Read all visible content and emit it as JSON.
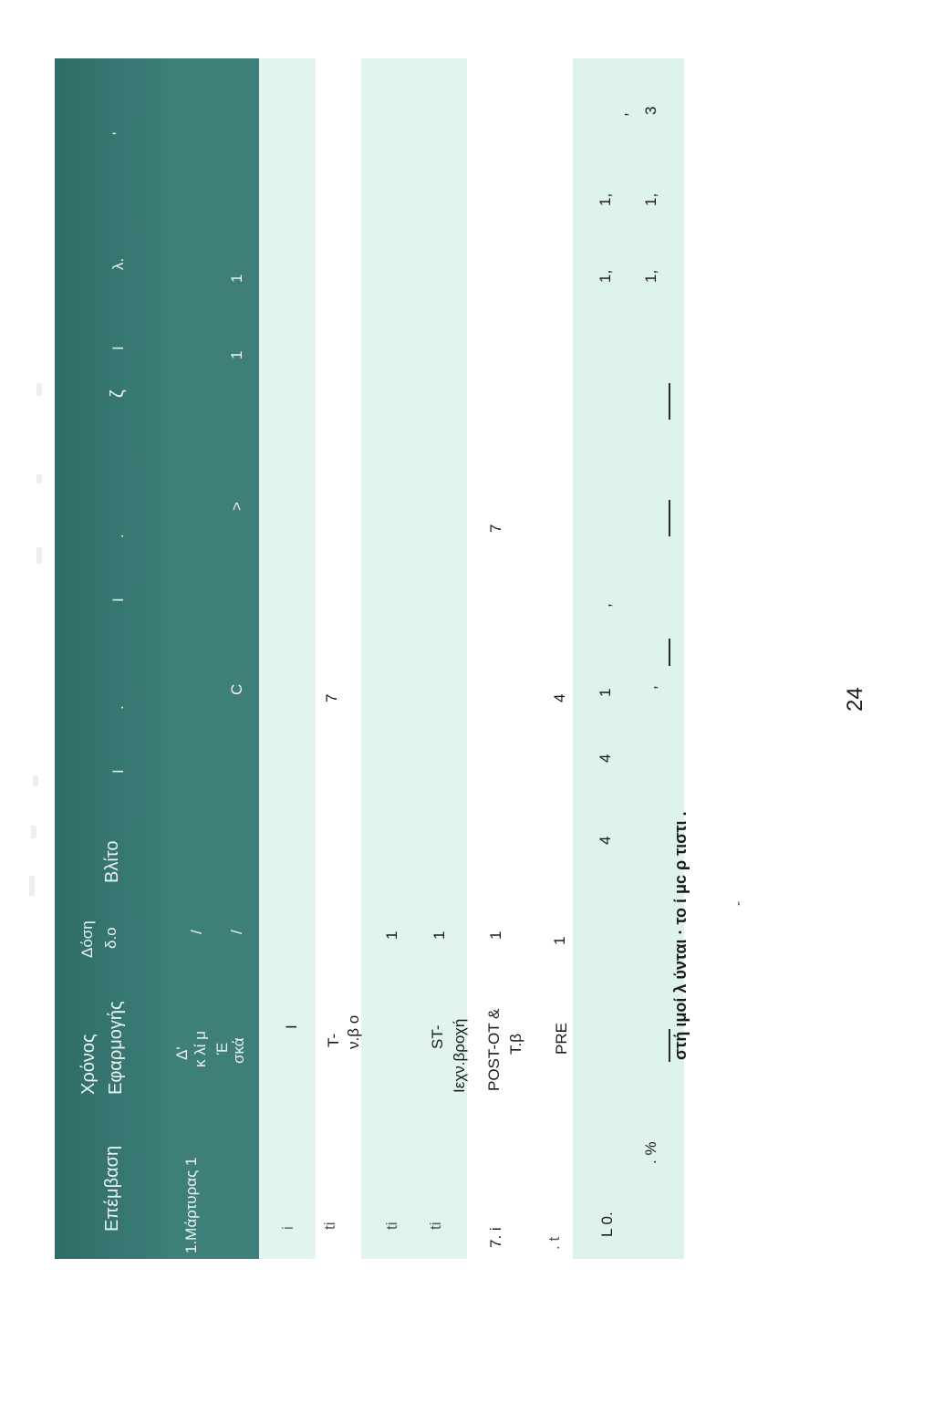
{
  "header": {
    "col_entry": "Επέμβαση",
    "col_time": [
      "Χρόνος",
      "Εφαρμογής"
    ],
    "col_dose": [
      "Δόση",
      "δ.ο"
    ],
    "col_vlito": "Βλίτο",
    "col_marks": [
      "I",
      ".",
      "I",
      ".",
      "ζ",
      "I",
      "λ.",
      "'"
    ]
  },
  "rows": [
    {
      "label": "1.Μάρτυρας 1",
      "time": [
        "Δ'",
        "κ λί μ",
        "Έ",
        "σκά"
      ],
      "dose": [
        "/",
        "/"
      ],
      "values": [
        "C",
        ">",
        "1",
        "1"
      ]
    },
    {
      "label": "i",
      "time": [
        "I"
      ],
      "dose": [],
      "values": []
    },
    {
      "label": "ti",
      "time": [
        "T-",
        "ν.β ο"
      ],
      "dose": [],
      "values": [
        "7"
      ]
    },
    {
      "label": "ti",
      "time": [],
      "dose": [
        "1"
      ],
      "values": []
    },
    {
      "label": "ti",
      "time": [
        "ST-",
        "Ιεχν.βροχή"
      ],
      "dose": [
        "1"
      ],
      "values": []
    },
    {
      "label": "7.   i",
      "time": [
        "POST-OT &",
        "Τ.β"
      ],
      "dose": [
        "1"
      ],
      "values": [
        "7"
      ]
    },
    {
      "label": ". t",
      "time": [
        "PRE"
      ],
      "dose": [
        "1"
      ],
      "values": [
        "4"
      ]
    },
    {
      "label": "L   0.",
      "time": [],
      "dose": [],
      "values": [
        "4",
        "4",
        "1",
        ",",
        "1,",
        "1,",
        ","
      ]
    },
    {
      "label": ". %",
      "time": [],
      "dose": [],
      "values": [
        ",",
        "1,",
        "1,",
        "3"
      ]
    }
  ],
  "footer_line": "στή     ιμοί     λ     ύνται  ·  το ί    μc    ρ     τιστι  .",
  "page_number": "24"
}
